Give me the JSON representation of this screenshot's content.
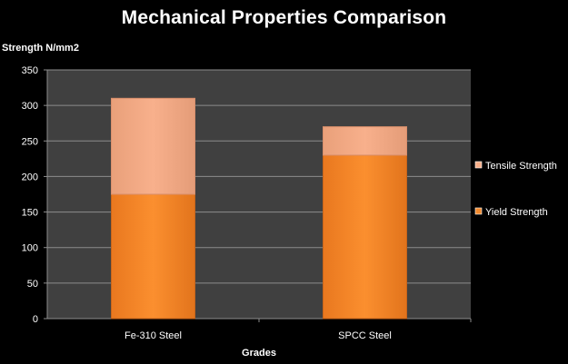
{
  "chart_data": {
    "type": "bar",
    "stacked": true,
    "title": "Mechanical Properties Comparison",
    "ylabel": "Strength N/mm2",
    "xlabel": "Grades",
    "categories": [
      "Fe-310 Steel",
      "SPCC Steel"
    ],
    "ylim": [
      0,
      350
    ],
    "yticks": [
      0,
      50,
      100,
      150,
      200,
      250,
      300,
      350
    ],
    "grid": true,
    "legend_position": "right",
    "series": [
      {
        "name": "Yield Strength",
        "values": [
          175,
          230
        ],
        "color": "#F28A2E"
      },
      {
        "name": "Tensile Strength",
        "values": [
          135,
          40
        ],
        "color": "#F7AE88"
      }
    ],
    "colors": {
      "background": "#000000",
      "plot_area": "#404040",
      "gridline": "#8C8C8C",
      "text": "#FFFFFF"
    }
  }
}
